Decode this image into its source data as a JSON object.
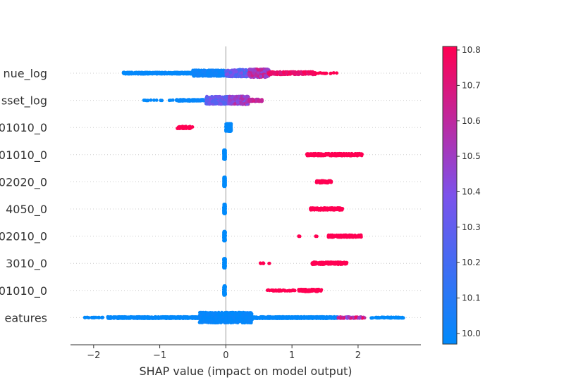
{
  "chart_data": {
    "type": "scatter",
    "subtype": "shap-beeswarm",
    "title": "",
    "xlabel": "SHAP value (impact on model output)",
    "ylabel": "",
    "xlim": [
      -2.35,
      2.95
    ],
    "xticks": [
      {
        "value": -2,
        "label": "−2"
      },
      {
        "value": -1,
        "label": "−1"
      },
      {
        "value": 0,
        "label": "0"
      },
      {
        "value": 1,
        "label": "1"
      },
      {
        "value": 2,
        "label": "2"
      }
    ],
    "features": [
      {
        "label": "nue_log",
        "segments": [
          {
            "from": -1.55,
            "to": -0.5,
            "hw": 0.06,
            "c0": 0.0,
            "c1": 0.04,
            "n": 420
          },
          {
            "from": -0.5,
            "to": 0.0,
            "hw": 0.22,
            "c0": 0.02,
            "c1": 0.08,
            "n": 360
          },
          {
            "from": 0.0,
            "to": 0.35,
            "hw": 0.26,
            "c0": 0.2,
            "c1": 0.55,
            "n": 320
          },
          {
            "from": 0.35,
            "to": 0.65,
            "hw": 0.3,
            "c0": 0.55,
            "c1": 0.85,
            "n": 260
          },
          {
            "from": 0.65,
            "to": 1.35,
            "hw": 0.1,
            "c0": 0.85,
            "c1": 1.0,
            "n": 200
          },
          {
            "from": 1.35,
            "to": 1.7,
            "hw": 0.03,
            "c0": 1.0,
            "c1": 1.0,
            "n": 14
          }
        ]
      },
      {
        "label": "sset_log",
        "segments": [
          {
            "from": -1.25,
            "to": -0.8,
            "hw": 0.02,
            "c0": 0.0,
            "c1": 0.02,
            "n": 14
          },
          {
            "from": -0.75,
            "to": -0.3,
            "hw": 0.05,
            "c0": 0.0,
            "c1": 0.05,
            "n": 120
          },
          {
            "from": -0.3,
            "to": 0.05,
            "hw": 0.28,
            "c0": 0.3,
            "c1": 0.55,
            "n": 340
          },
          {
            "from": 0.05,
            "to": 0.35,
            "hw": 0.3,
            "c0": 0.45,
            "c1": 0.75,
            "n": 300
          },
          {
            "from": 0.35,
            "to": 0.55,
            "hw": 0.08,
            "c0": 0.7,
            "c1": 0.85,
            "n": 60
          }
        ]
      },
      {
        "label": "01010_0",
        "segments": [
          {
            "from": -0.74,
            "to": -0.5,
            "hw": 0.08,
            "c0": 1.0,
            "c1": 1.0,
            "n": 60
          },
          {
            "from": 0.0,
            "to": 0.08,
            "hw": 0.28,
            "c0": 0.0,
            "c1": 0.02,
            "n": 220
          }
        ]
      },
      {
        "label": "01010_0",
        "segments": [
          {
            "from": -0.03,
            "to": -0.01,
            "hw": 0.34,
            "c0": 0.0,
            "c1": 0.0,
            "n": 200
          },
          {
            "from": 1.22,
            "to": 2.06,
            "hw": 0.08,
            "c0": 1.0,
            "c1": 1.0,
            "n": 260
          }
        ]
      },
      {
        "label": "02020_0",
        "segments": [
          {
            "from": -0.03,
            "to": -0.01,
            "hw": 0.34,
            "c0": 0.0,
            "c1": 0.0,
            "n": 200
          },
          {
            "from": 1.37,
            "to": 1.6,
            "hw": 0.08,
            "c0": 1.0,
            "c1": 1.0,
            "n": 90
          }
        ]
      },
      {
        "label": "4050_0",
        "segments": [
          {
            "from": -0.03,
            "to": -0.01,
            "hw": 0.34,
            "c0": 0.0,
            "c1": 0.0,
            "n": 200
          },
          {
            "from": 1.28,
            "to": 1.77,
            "hw": 0.08,
            "c0": 1.0,
            "c1": 1.0,
            "n": 160
          }
        ]
      },
      {
        "label": "02010_0",
        "segments": [
          {
            "from": -0.03,
            "to": -0.01,
            "hw": 0.34,
            "c0": 0.0,
            "c1": 0.0,
            "n": 200
          },
          {
            "from": 1.08,
            "to": 1.12,
            "hw": 0.02,
            "c0": 1.0,
            "c1": 1.0,
            "n": 4
          },
          {
            "from": 1.35,
            "to": 1.38,
            "hw": 0.02,
            "c0": 1.0,
            "c1": 1.0,
            "n": 3
          },
          {
            "from": 1.55,
            "to": 2.05,
            "hw": 0.08,
            "c0": 1.0,
            "c1": 1.0,
            "n": 160
          }
        ]
      },
      {
        "label": "3010_0",
        "segments": [
          {
            "from": -0.03,
            "to": -0.01,
            "hw": 0.34,
            "c0": 0.0,
            "c1": 0.0,
            "n": 200
          },
          {
            "from": 0.5,
            "to": 0.58,
            "hw": 0.02,
            "c0": 1.0,
            "c1": 1.0,
            "n": 6
          },
          {
            "from": 0.65,
            "to": 0.67,
            "hw": 0.02,
            "c0": 1.0,
            "c1": 1.0,
            "n": 2
          },
          {
            "from": 1.3,
            "to": 1.83,
            "hw": 0.08,
            "c0": 1.0,
            "c1": 1.0,
            "n": 160
          }
        ]
      },
      {
        "label": "01010_0",
        "segments": [
          {
            "from": -0.03,
            "to": -0.01,
            "hw": 0.34,
            "c0": 0.0,
            "c1": 0.0,
            "n": 200
          },
          {
            "from": 0.62,
            "to": 1.05,
            "hw": 0.04,
            "c0": 1.0,
            "c1": 1.0,
            "n": 40
          },
          {
            "from": 1.1,
            "to": 1.45,
            "hw": 0.08,
            "c0": 1.0,
            "c1": 1.0,
            "n": 100
          }
        ]
      },
      {
        "label": "eatures",
        "segments": [
          {
            "from": -2.15,
            "to": -1.8,
            "hw": 0.02,
            "c0": 0.0,
            "c1": 0.02,
            "n": 18
          },
          {
            "from": -1.8,
            "to": -0.4,
            "hw": 0.06,
            "c0": 0.0,
            "c1": 0.03,
            "n": 520
          },
          {
            "from": -0.4,
            "to": 0.4,
            "hw": 0.38,
            "c0": 0.0,
            "c1": 0.05,
            "n": 900
          },
          {
            "from": 0.4,
            "to": 1.7,
            "hw": 0.06,
            "c0": 0.0,
            "c1": 0.03,
            "n": 520
          },
          {
            "from": 1.7,
            "to": 2.1,
            "hw": 0.05,
            "c0": 0.5,
            "c1": 1.0,
            "n": 80
          },
          {
            "from": 2.2,
            "to": 2.7,
            "hw": 0.03,
            "c0": 0.0,
            "c1": 0.0,
            "n": 50
          }
        ]
      }
    ],
    "colorbar": {
      "min": 9.97,
      "max": 10.81,
      "ticks": [
        "10.0",
        "10.1",
        "10.2",
        "10.3",
        "10.4",
        "10.5",
        "10.6",
        "10.7",
        "10.8"
      ],
      "colors": [
        "#008afb",
        "#7c52eb",
        "#ff0052"
      ]
    },
    "grid": false,
    "legend": "colorbar-right"
  }
}
